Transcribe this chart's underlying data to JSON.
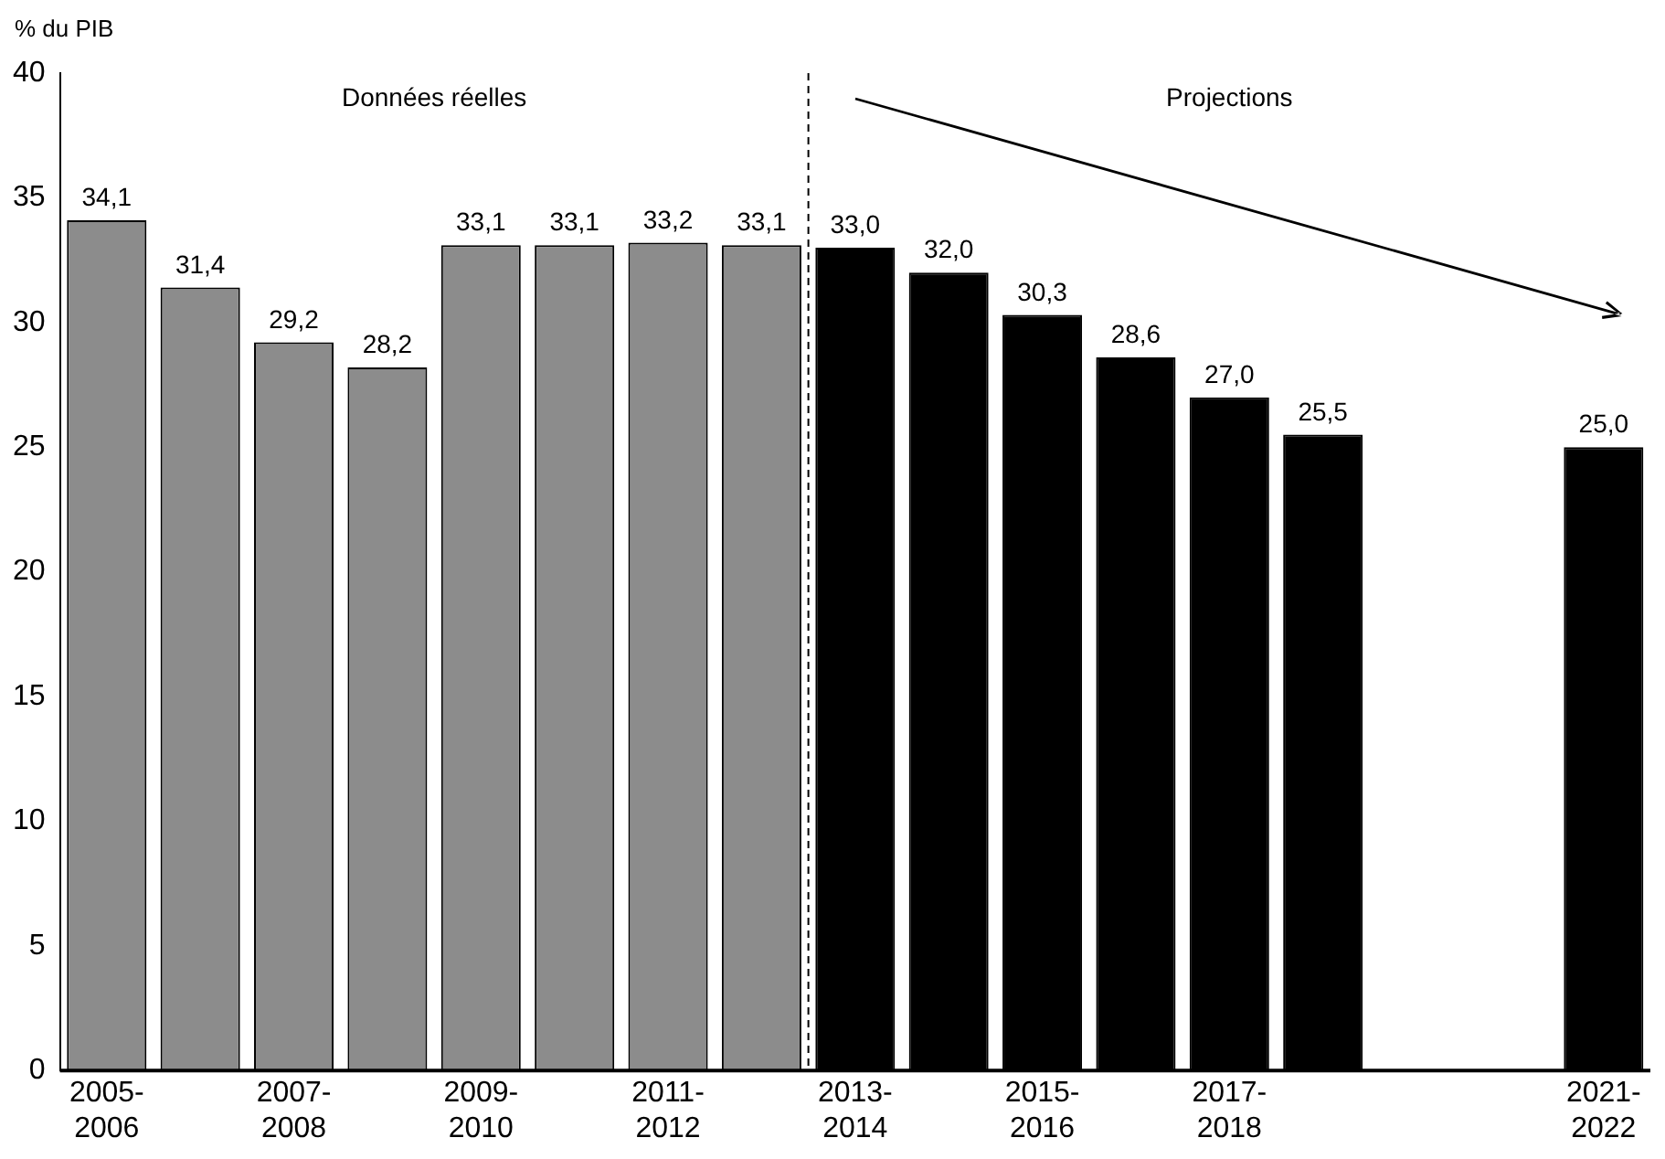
{
  "chart_data": {
    "type": "bar",
    "ylabel": "% du PIB",
    "categories": [
      "2005-2006",
      null,
      "2007-2008",
      null,
      "2009-2010",
      null,
      "2011-2012",
      null,
      "2013-2014",
      null,
      "2015-2016",
      null,
      "2017-2018",
      null,
      null,
      null,
      "2021-2022"
    ],
    "values": [
      34.1,
      31.4,
      29.2,
      28.2,
      33.1,
      33.1,
      33.2,
      33.1,
      33.0,
      32.0,
      30.3,
      28.6,
      27.0,
      25.5,
      null,
      null,
      25.0
    ],
    "colors": [
      "#8c8c8c",
      "#8c8c8c",
      "#8c8c8c",
      "#8c8c8c",
      "#8c8c8c",
      "#8c8c8c",
      "#8c8c8c",
      "#8c8c8c",
      "#000000",
      "#000000",
      "#000000",
      "#000000",
      "#000000",
      "#000000",
      "#000000",
      "#000000",
      "#000000"
    ],
    "value_labels": [
      "34,1",
      "31,4",
      "29,2",
      "28,2",
      "33,1",
      "33,1",
      "33,2",
      "33,1",
      "33,0",
      "32,0",
      "30,3",
      "28,6",
      "27,0",
      "25,5",
      null,
      null,
      "25,0"
    ],
    "ylim": [
      0,
      40
    ],
    "yticks": [
      0,
      5,
      10,
      15,
      20,
      25,
      30,
      35,
      40
    ],
    "grid": false,
    "legend": false,
    "annotations": [
      "Données réelles",
      "Projections"
    ]
  }
}
